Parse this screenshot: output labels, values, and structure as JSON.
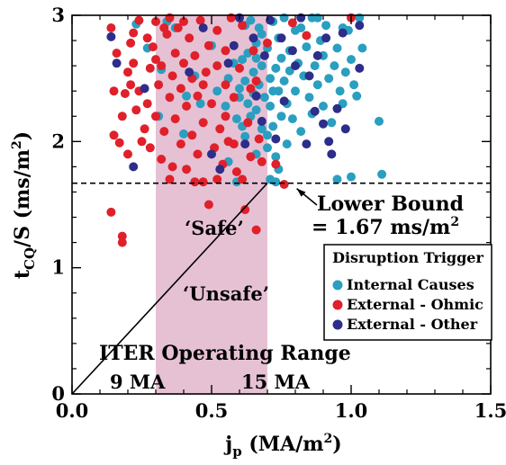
{
  "chart_data": {
    "type": "scatter",
    "xlabel_main": "j",
    "xlabel_sub": "p",
    "xlabel_rest": " (MA/m",
    "xlabel_sup": "2",
    "xlabel_end": ")",
    "ylabel_main": "t",
    "ylabel_sub": "CQ",
    "ylabel_rest": "/S (ms/m",
    "ylabel_sup": "2",
    "ylabel_end": ")",
    "xlim": [
      0.0,
      1.5
    ],
    "ylim": [
      0,
      3
    ],
    "xticks": [
      "0.0",
      "0.5",
      "1.0",
      "1.5"
    ],
    "yticks": [
      "0",
      "1",
      "2",
      "3"
    ],
    "grid": false,
    "legend_position": "bottom-right",
    "legend_title": "Disruption Trigger",
    "iter_range": {
      "x0": 0.3,
      "x1": 0.7,
      "color": "#e6c1d4"
    },
    "lower_bound": 1.67,
    "unsafe_line": {
      "from": [
        0.0,
        0.0
      ],
      "to": [
        0.7,
        1.67
      ]
    },
    "annotations": {
      "lower_bound_line1": "Lower Bound",
      "lower_bound_line2": "= 1.67 ms/m",
      "lower_bound_sup": "2",
      "safe": "‘Safe’",
      "unsafe": "‘Unsafe’",
      "iter_operating_range": "ITER Operating Range",
      "ma_9": "9 MA",
      "ma_15": "15 MA"
    },
    "series": [
      {
        "name": "Internal Causes",
        "color": "#2a9fc0",
        "points": [
          [
            0.23,
            2.93
          ],
          [
            0.27,
            2.74
          ],
          [
            0.31,
            2.2
          ],
          [
            0.32,
            2.57
          ],
          [
            0.34,
            2.95
          ],
          [
            0.37,
            2.9
          ],
          [
            0.4,
            2.06
          ],
          [
            0.41,
            2.36
          ],
          [
            0.44,
            2.52
          ],
          [
            0.46,
            2.3
          ],
          [
            0.5,
            2.76
          ],
          [
            0.52,
            2.4
          ],
          [
            0.55,
            2.28
          ],
          [
            0.56,
            2.5
          ],
          [
            0.56,
            1.84
          ],
          [
            0.58,
            2.62
          ],
          [
            0.59,
            2.18
          ],
          [
            0.6,
            2.42
          ],
          [
            0.6,
            2.35
          ],
          [
            0.61,
            2.65
          ],
          [
            0.61,
            2.12
          ],
          [
            0.62,
            2.04
          ],
          [
            0.62,
            2.48
          ],
          [
            0.63,
            2.3
          ],
          [
            0.63,
            2.7
          ],
          [
            0.64,
            2.96
          ],
          [
            0.64,
            2.2
          ],
          [
            0.65,
            2.55
          ],
          [
            0.65,
            2.38
          ],
          [
            0.66,
            2.25
          ],
          [
            0.66,
            2.78
          ],
          [
            0.67,
            2.45
          ],
          [
            0.67,
            2.9
          ],
          [
            0.68,
            2.1
          ],
          [
            0.68,
            2.6
          ],
          [
            0.69,
            2.35
          ],
          [
            0.7,
            2.05
          ],
          [
            0.7,
            2.74
          ],
          [
            0.7,
            1.95
          ],
          [
            0.71,
            2.5
          ],
          [
            0.71,
            2.28
          ],
          [
            0.72,
            2.95
          ],
          [
            0.72,
            2.12
          ],
          [
            0.73,
            2.58
          ],
          [
            0.73,
            1.88
          ],
          [
            0.74,
            2.4
          ],
          [
            0.74,
            2.82
          ],
          [
            0.75,
            2.2
          ],
          [
            0.75,
            2.66
          ],
          [
            0.76,
            2.98
          ],
          [
            0.76,
            2.48
          ],
          [
            0.77,
            2.3
          ],
          [
            0.77,
            1.98
          ],
          [
            0.78,
            2.72
          ],
          [
            0.78,
            2.56
          ],
          [
            0.79,
            2.18
          ],
          [
            0.8,
            2.88
          ],
          [
            0.8,
            2.4
          ],
          [
            0.81,
            2.62
          ],
          [
            0.82,
            2.08
          ],
          [
            0.82,
            2.9
          ],
          [
            0.83,
            2.52
          ],
          [
            0.84,
            2.75
          ],
          [
            0.85,
            2.35
          ],
          [
            0.86,
            2.22
          ],
          [
            0.86,
            2.98
          ],
          [
            0.87,
            2.6
          ],
          [
            0.88,
            2.45
          ],
          [
            0.89,
            2.8
          ],
          [
            0.9,
            2.28
          ],
          [
            0.9,
            2.68
          ],
          [
            0.91,
            2.92
          ],
          [
            0.92,
            2.5
          ],
          [
            0.93,
            2.15
          ],
          [
            0.94,
            2.6
          ],
          [
            0.95,
            2.74
          ],
          [
            0.96,
            2.4
          ],
          [
            0.97,
            2.3
          ],
          [
            0.98,
            2.55
          ],
          [
            0.99,
            2.88
          ],
          [
            1.0,
            2.65
          ],
          [
            1.01,
            2.45
          ],
          [
            1.02,
            2.36
          ],
          [
            1.04,
            2.74
          ],
          [
            1.1,
            2.16
          ],
          [
            1.11,
            1.74
          ],
          [
            0.71,
            1.7
          ],
          [
            0.73,
            1.68
          ],
          [
            0.95,
            1.7
          ],
          [
            1.0,
            1.72
          ],
          [
            0.66,
            1.9
          ],
          [
            0.74,
            1.78
          ],
          [
            0.97,
            2.9
          ],
          [
            1.03,
            2.98
          ],
          [
            0.88,
            2.98
          ],
          [
            0.59,
            1.68
          ],
          [
            0.68,
            2.85
          ],
          [
            0.62,
            2.92
          ],
          [
            0.66,
            2.66
          ],
          [
            0.72,
            2.4
          ]
        ]
      },
      {
        "name": "External - Ohmic",
        "color": "#e0202a",
        "points": [
          [
            0.14,
            1.44
          ],
          [
            0.14,
            2.9
          ],
          [
            0.15,
            2.4
          ],
          [
            0.15,
            2.05
          ],
          [
            0.16,
            2.7
          ],
          [
            0.17,
            1.99
          ],
          [
            0.18,
            1.25
          ],
          [
            0.18,
            1.2
          ],
          [
            0.19,
            2.38
          ],
          [
            0.2,
            2.55
          ],
          [
            0.21,
            2.78
          ],
          [
            0.21,
            2.45
          ],
          [
            0.22,
            2.62
          ],
          [
            0.22,
            2.86
          ],
          [
            0.23,
            2.25
          ],
          [
            0.24,
            2.96
          ],
          [
            0.24,
            2.4
          ],
          [
            0.26,
            2.1
          ],
          [
            0.27,
            2.82
          ],
          [
            0.27,
            2.3
          ],
          [
            0.28,
            2.58
          ],
          [
            0.29,
            2.75
          ],
          [
            0.3,
            2.2
          ],
          [
            0.3,
            2.95
          ],
          [
            0.31,
            2.45
          ],
          [
            0.32,
            2.6
          ],
          [
            0.32,
            1.86
          ],
          [
            0.33,
            2.08
          ],
          [
            0.34,
            2.85
          ],
          [
            0.35,
            2.35
          ],
          [
            0.35,
            1.7
          ],
          [
            0.36,
            2.52
          ],
          [
            0.37,
            2.7
          ],
          [
            0.37,
            2.18
          ],
          [
            0.38,
            2.9
          ],
          [
            0.39,
            2.42
          ],
          [
            0.39,
            1.98
          ],
          [
            0.4,
            2.62
          ],
          [
            0.41,
            2.28
          ],
          [
            0.41,
            1.78
          ],
          [
            0.42,
            2.82
          ],
          [
            0.43,
            2.5
          ],
          [
            0.43,
            2.05
          ],
          [
            0.44,
            2.68
          ],
          [
            0.45,
            1.9
          ],
          [
            0.45,
            2.36
          ],
          [
            0.46,
            2.96
          ],
          [
            0.47,
            2.15
          ],
          [
            0.47,
            1.68
          ],
          [
            0.48,
            2.55
          ],
          [
            0.49,
            2.76
          ],
          [
            0.49,
            1.5
          ],
          [
            0.5,
            2.3
          ],
          [
            0.51,
            1.95
          ],
          [
            0.52,
            2.88
          ],
          [
            0.52,
            2.6
          ],
          [
            0.53,
            2.1
          ],
          [
            0.54,
            1.82
          ],
          [
            0.55,
            2.45
          ],
          [
            0.55,
            2.72
          ],
          [
            0.56,
            2.0
          ],
          [
            0.57,
            2.98
          ],
          [
            0.58,
            2.35
          ],
          [
            0.59,
            1.76
          ],
          [
            0.6,
            2.58
          ],
          [
            0.61,
            2.92
          ],
          [
            0.62,
            1.46
          ],
          [
            0.63,
            2.15
          ],
          [
            0.64,
            1.88
          ],
          [
            0.65,
            2.72
          ],
          [
            0.66,
            1.3
          ],
          [
            0.66,
            2.48
          ],
          [
            0.67,
            2.02
          ],
          [
            0.68,
            1.84
          ],
          [
            0.7,
            2.78
          ],
          [
            0.73,
            1.82
          ],
          [
            0.76,
            1.66
          ],
          [
            0.79,
            2.94
          ],
          [
            0.84,
            2.84
          ],
          [
            1.0,
            2.98
          ],
          [
            0.25,
            2.0
          ],
          [
            0.18,
            2.2
          ],
          [
            0.2,
            1.9
          ],
          [
            0.33,
            2.9
          ],
          [
            0.36,
            1.8
          ],
          [
            0.44,
            1.68
          ],
          [
            0.52,
            1.7
          ],
          [
            0.58,
            1.98
          ],
          [
            0.64,
            2.42
          ],
          [
            0.4,
            2.95
          ],
          [
            0.28,
            1.95
          ],
          [
            0.47,
            2.45
          ],
          [
            0.55,
            2.2
          ],
          [
            0.61,
            1.7
          ],
          [
            0.3,
            2.65
          ],
          [
            0.35,
            2.98
          ]
        ]
      },
      {
        "name": "External - Other",
        "color": "#2d2d8a",
        "points": [
          [
            0.14,
            2.83
          ],
          [
            0.16,
            2.62
          ],
          [
            0.26,
            2.42
          ],
          [
            0.42,
            2.55
          ],
          [
            0.5,
            1.9
          ],
          [
            0.53,
            1.78
          ],
          [
            0.58,
            2.76
          ],
          [
            0.6,
            2.98
          ],
          [
            0.62,
            1.98
          ],
          [
            0.65,
            2.82
          ],
          [
            0.66,
            2.36
          ],
          [
            0.68,
            2.16
          ],
          [
            0.69,
            2.68
          ],
          [
            0.71,
            2.96
          ],
          [
            0.73,
            2.02
          ],
          [
            0.76,
            2.32
          ],
          [
            0.79,
            2.72
          ],
          [
            0.82,
            2.98
          ],
          [
            0.84,
            1.98
          ],
          [
            0.85,
            2.52
          ],
          [
            0.87,
            2.24
          ],
          [
            0.88,
            2.68
          ],
          [
            0.9,
            2.14
          ],
          [
            0.91,
            2.82
          ],
          [
            0.92,
            2.0
          ],
          [
            0.93,
            1.9
          ],
          [
            0.95,
            2.26
          ],
          [
            0.97,
            2.86
          ],
          [
            0.98,
            2.1
          ],
          [
            1.03,
            2.58
          ],
          [
            1.03,
            2.92
          ],
          [
            0.22,
            1.8
          ],
          [
            0.47,
            2.9
          ],
          [
            0.56,
            2.62
          ],
          [
            0.75,
            2.82
          ],
          [
            0.8,
            2.6
          ]
        ]
      }
    ]
  }
}
